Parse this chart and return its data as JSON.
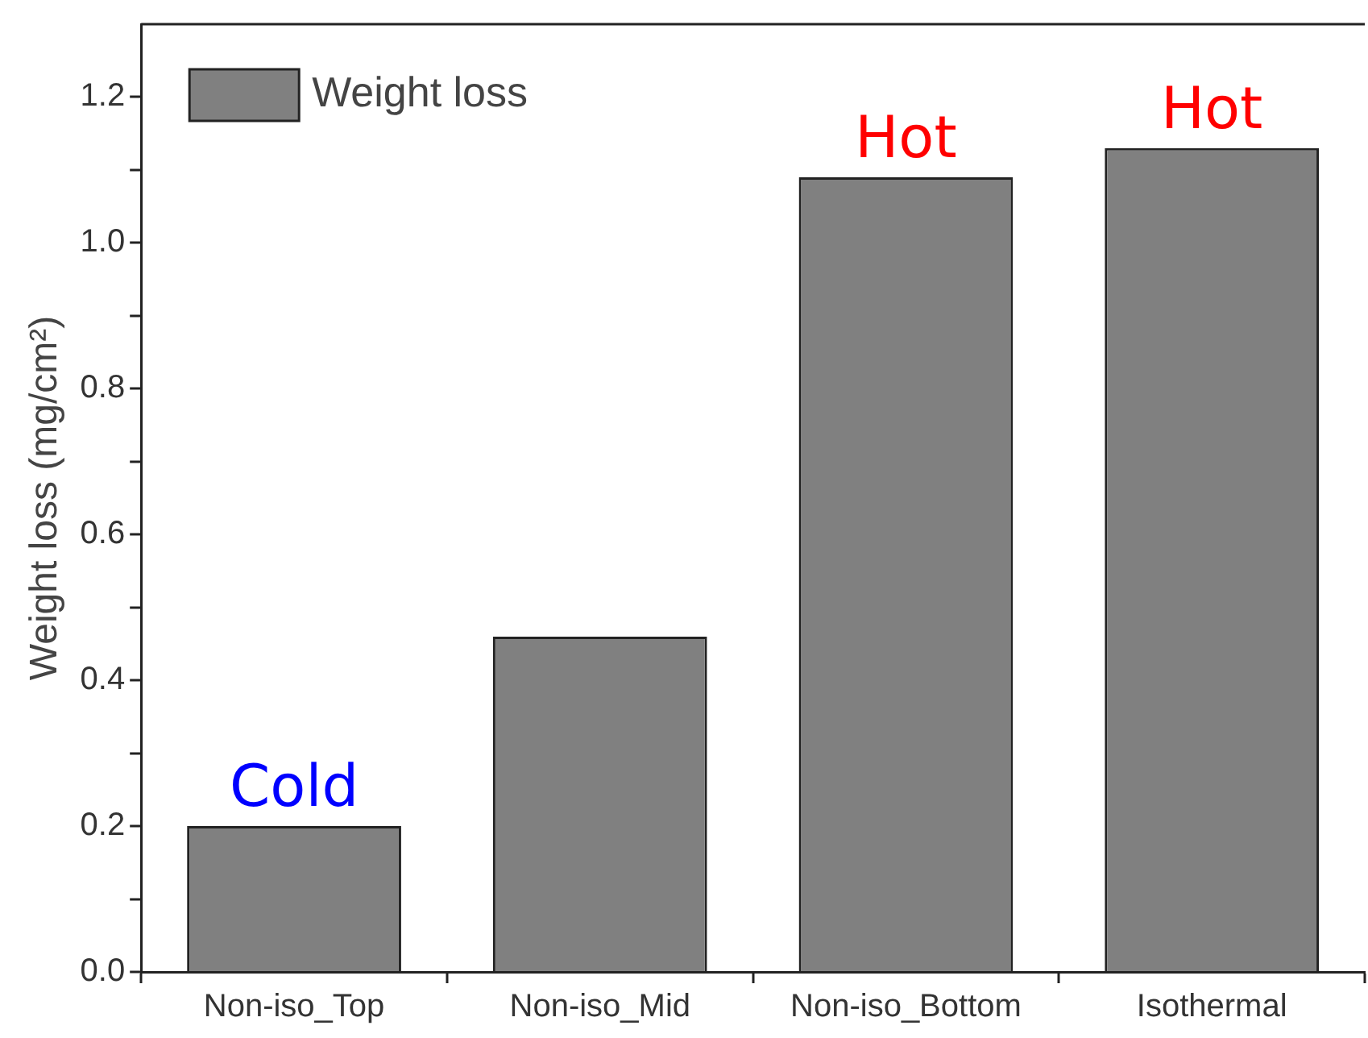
{
  "chart_data": {
    "type": "bar",
    "ylabel": "Weight loss (mg/cm²)",
    "categories": [
      "Non-iso_Top",
      "Non-iso_Mid",
      "Non-iso_Bottom",
      "Isothermal"
    ],
    "series": [
      {
        "name": "Weight loss",
        "color": "#808080",
        "values": [
          0.2,
          0.46,
          1.09,
          1.13
        ]
      }
    ],
    "ylim": [
      0,
      1.3
    ],
    "yticks": [
      {
        "value": 0,
        "label": "0.0"
      },
      {
        "value": 0.1,
        "label": null
      },
      {
        "value": 0.2,
        "label": "0.2"
      },
      {
        "value": 0.3,
        "label": null
      },
      {
        "value": 0.4,
        "label": "0.4"
      },
      {
        "value": 0.5,
        "label": null
      },
      {
        "value": 0.6,
        "label": "0.6"
      },
      {
        "value": 0.7,
        "label": null
      },
      {
        "value": 0.8,
        "label": "0.8"
      },
      {
        "value": 0.9,
        "label": null
      },
      {
        "value": 1.0,
        "label": "1.0"
      },
      {
        "value": 1.1,
        "label": null
      },
      {
        "value": 1.2,
        "label": "1.2"
      }
    ],
    "annotations": [
      {
        "text": "Cold",
        "x": "Non-iso_Top",
        "y": 0.2
      },
      {
        "text": "Hot",
        "x": "Non-iso_Bottom",
        "y": 1.09
      },
      {
        "text": "Hot",
        "x": "Isothermal",
        "y": 1.13
      }
    ],
    "legend": "top left",
    "grid": false
  }
}
